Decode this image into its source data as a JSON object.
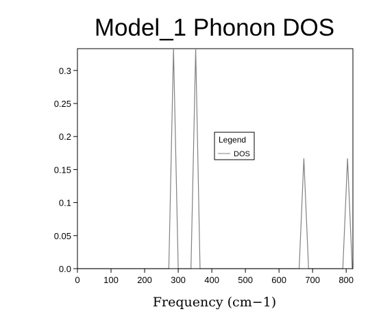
{
  "chart_data": {
    "type": "line",
    "title": "Model_1 Phonon DOS",
    "xlabel": "Frequency (cm−1)",
    "ylabel": "",
    "xlim": [
      0,
      820
    ],
    "ylim": [
      0,
      0.333
    ],
    "x_ticks": [
      0,
      100,
      200,
      300,
      400,
      500,
      600,
      700,
      800
    ],
    "y_ticks": [
      0.0,
      0.05,
      0.1,
      0.15,
      0.2,
      0.25,
      0.3
    ],
    "y_tick_labels": [
      "0.0",
      "0.05",
      "0.1",
      "0.15",
      "0.2",
      "0.25",
      "0.3"
    ],
    "grid": false,
    "legend": {
      "title": "Legend",
      "placement": "center-right"
    },
    "series": [
      {
        "name": "DOS",
        "color": "#808080",
        "x": [
          0,
          272,
          286,
          300,
          338,
          352,
          365,
          660,
          674,
          688,
          790,
          804,
          818,
          820
        ],
        "y": [
          0,
          0,
          0.333,
          0,
          0,
          0.333,
          0,
          0,
          0.167,
          0,
          0,
          0.167,
          0,
          0
        ]
      }
    ]
  }
}
